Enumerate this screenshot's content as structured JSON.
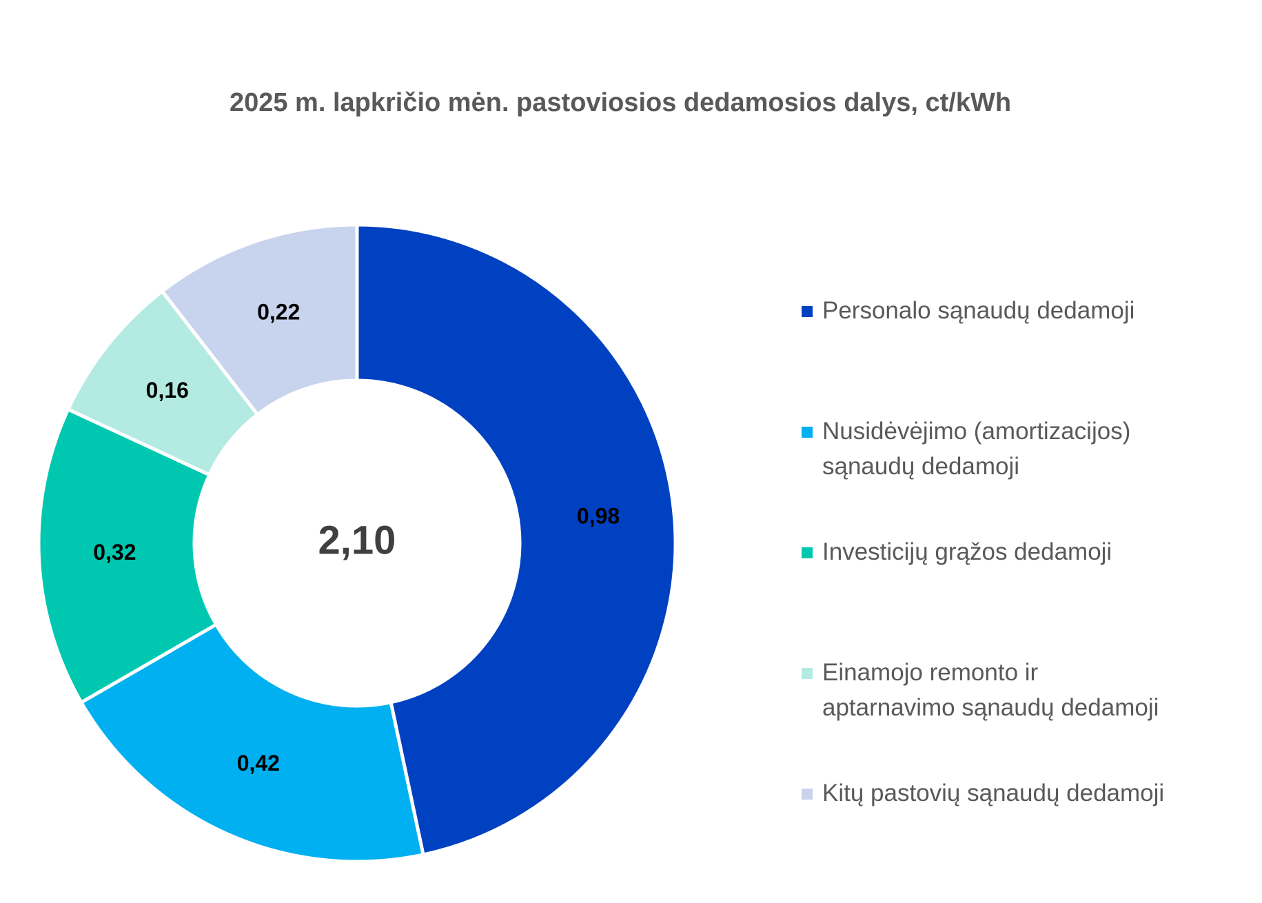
{
  "chart_data": {
    "type": "pie",
    "title": "2025 m.  lapkričio mėn.  pastoviosios dedamosios dalys, ct/kWh",
    "center_label": "2,10",
    "categories": [
      "Personalo sąnaudų dedamoji",
      "Nusidėvėjimo (amortizacijos)\nsąnaudų dedamoji",
      "Investicijų grąžos dedamoji",
      "Einamojo remonto ir\naptarnavimo sąnaudų dedamoji",
      "Kitų pastovių sąnaudų dedamoji"
    ],
    "values": [
      0.98,
      0.42,
      0.32,
      0.16,
      0.22
    ],
    "value_labels": [
      "0,98",
      "0,42",
      "0,32",
      "0,16",
      "0,22"
    ],
    "colors": [
      "#0041C2",
      "#00B0F0",
      "#00C8B0",
      "#B3EBE3",
      "#C8D3EE"
    ],
    "donut": true,
    "legend": "right"
  }
}
